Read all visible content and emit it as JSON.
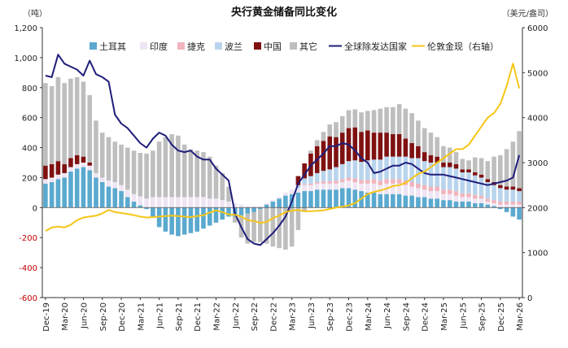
{
  "chart_data": {
    "type": "bar",
    "title": "央行黄金储备同比变化",
    "ylabel": "吨",
    "y2label": "美元/盎司",
    "ylim": [
      -600,
      1200
    ],
    "y2lim": [
      0,
      6000
    ],
    "yticks": [
      "1,200",
      "1,000",
      "800",
      "600",
      "400",
      "200",
      "0",
      "-200",
      "-400",
      "-600"
    ],
    "y2ticks": [
      "6000",
      "5000",
      "4000",
      "3000",
      "2000",
      "1000",
      "0"
    ],
    "xticks": [
      "Dec-19",
      "Mar-20",
      "Jun-20",
      "Sep-20",
      "Dec-20",
      "Mar-21",
      "Jun-21",
      "Sep-21",
      "Dec-21",
      "Mar-22",
      "Jun-22",
      "Sep-22",
      "Dec-22",
      "Mar-23",
      "Jun-23",
      "Sep-23",
      "Dec-23",
      "Mar-24",
      "Jun-24",
      "Sep-24",
      "Dec-24",
      "Mar-25",
      "Jun-25",
      "Sep-25",
      "Dec-25",
      "Mar-26"
    ],
    "grid": false,
    "legend_position": "top",
    "series": [
      {
        "name": "土耳其",
        "kind": "bar",
        "color": "#5aa9cf",
        "values": [
          160,
          170,
          190,
          200,
          240,
          260,
          270,
          250,
          200,
          170,
          140,
          130,
          110,
          70,
          40,
          15,
          -10,
          -60,
          -130,
          -160,
          -180,
          -190,
          -180,
          -170,
          -160,
          -140,
          -120,
          -100,
          -80,
          -60,
          -60,
          -50,
          -40,
          -30,
          -10,
          20,
          40,
          60,
          80,
          90,
          100,
          110,
          110,
          120,
          120,
          120,
          120,
          130,
          130,
          120,
          110,
          100,
          100,
          90,
          90,
          90,
          90,
          80,
          80,
          70,
          70,
          60,
          60,
          50,
          50,
          40,
          40,
          40,
          30,
          30,
          20,
          10,
          -10,
          -30,
          -60,
          -80
        ]
      },
      {
        "name": "印度",
        "kind": "bar",
        "color": "#eee4f3",
        "values": [
          30,
          30,
          30,
          30,
          30,
          30,
          30,
          30,
          30,
          30,
          40,
          40,
          40,
          50,
          50,
          60,
          60,
          70,
          70,
          70,
          70,
          70,
          70,
          70,
          70,
          70,
          60,
          60,
          50,
          40,
          30,
          20,
          10,
          10,
          10,
          10,
          10,
          10,
          20,
          30,
          30,
          40,
          40,
          40,
          40,
          40,
          40,
          40,
          50,
          50,
          50,
          60,
          60,
          60,
          70,
          70,
          70,
          70,
          60,
          60,
          50,
          50,
          50,
          40,
          40,
          40,
          30,
          30,
          30,
          30,
          20,
          20,
          20,
          20,
          20,
          20
        ]
      },
      {
        "name": "捷克",
        "kind": "bar",
        "color": "#f0b4bd",
        "values": [
          0,
          0,
          0,
          0,
          0,
          0,
          0,
          0,
          0,
          0,
          0,
          0,
          0,
          0,
          0,
          0,
          0,
          0,
          0,
          0,
          0,
          0,
          0,
          0,
          0,
          0,
          0,
          0,
          0,
          0,
          0,
          0,
          0,
          0,
          0,
          0,
          0,
          0,
          0,
          0,
          0,
          5,
          10,
          10,
          15,
          15,
          20,
          20,
          20,
          25,
          25,
          25,
          30,
          30,
          30,
          30,
          30,
          30,
          30,
          30,
          30,
          30,
          30,
          30,
          30,
          30,
          25,
          25,
          25,
          20,
          20,
          20,
          20,
          20,
          20,
          20
        ]
      },
      {
        "name": "波兰",
        "kind": "bar",
        "color": "#b9d4ed",
        "values": [
          0,
          0,
          0,
          0,
          0,
          0,
          0,
          0,
          0,
          0,
          0,
          0,
          0,
          0,
          0,
          0,
          0,
          0,
          0,
          0,
          0,
          0,
          0,
          0,
          0,
          0,
          0,
          0,
          0,
          0,
          0,
          0,
          0,
          0,
          0,
          0,
          0,
          0,
          0,
          0,
          20,
          40,
          50,
          60,
          70,
          80,
          90,
          100,
          110,
          120,
          120,
          130,
          130,
          140,
          150,
          150,
          150,
          160,
          160,
          170,
          160,
          160,
          160,
          150,
          150,
          150,
          140,
          140,
          130,
          120,
          110,
          100,
          90,
          80,
          80,
          70
        ]
      },
      {
        "name": "中国",
        "kind": "bar",
        "color": "#7f1111",
        "values": [
          90,
          90,
          90,
          60,
          60,
          60,
          40,
          20,
          0,
          0,
          0,
          0,
          0,
          0,
          0,
          0,
          0,
          0,
          0,
          0,
          0,
          0,
          0,
          0,
          0,
          0,
          0,
          0,
          0,
          0,
          0,
          0,
          0,
          0,
          0,
          0,
          0,
          0,
          0,
          0,
          60,
          100,
          150,
          180,
          200,
          220,
          200,
          210,
          220,
          220,
          200,
          200,
          180,
          180,
          160,
          150,
          150,
          120,
          100,
          80,
          60,
          50,
          40,
          30,
          30,
          30,
          20,
          20,
          20,
          20,
          20,
          20,
          20,
          20,
          20,
          20
        ]
      },
      {
        "name": "其它",
        "kind": "bar",
        "color": "#bebebe",
        "values": [
          550,
          520,
          560,
          540,
          530,
          520,
          500,
          450,
          350,
          300,
          290,
          270,
          270,
          280,
          290,
          290,
          300,
          310,
          370,
          400,
          420,
          410,
          350,
          320,
          310,
          300,
          280,
          220,
          180,
          100,
          -40,
          -150,
          -200,
          -200,
          -220,
          -240,
          -260,
          -270,
          -280,
          -260,
          -150,
          -30,
          20,
          40,
          60,
          80,
          100,
          110,
          120,
          120,
          130,
          130,
          150,
          160,
          170,
          180,
          200,
          200,
          200,
          170,
          160,
          150,
          130,
          110,
          100,
          80,
          70,
          60,
          100,
          110,
          120,
          170,
          200,
          250,
          300,
          380
        ]
      },
      {
        "name": "全球除发达国家",
        "kind": "line",
        "axis": "left",
        "color": "#1f1e7a",
        "values": [
          880,
          870,
          1020,
          960,
          940,
          920,
          880,
          980,
          890,
          870,
          840,
          620,
          560,
          530,
          480,
          430,
          400,
          460,
          500,
          480,
          420,
          380,
          370,
          380,
          340,
          320,
          320,
          260,
          220,
          180,
          -40,
          -130,
          -210,
          -240,
          -250,
          -210,
          -170,
          -120,
          -60,
          40,
          160,
          220,
          280,
          320,
          360,
          410,
          410,
          430,
          420,
          380,
          330,
          300,
          230,
          240,
          260,
          280,
          280,
          300,
          290,
          260,
          230,
          220,
          220,
          220,
          210,
          200,
          190,
          180,
          170,
          160,
          150,
          160,
          170,
          180,
          200,
          350
        ]
      },
      {
        "name": "伦敦金现（右轴）",
        "kind": "line",
        "axis": "right",
        "color": "#f5c518",
        "values": [
          1480,
          1560,
          1580,
          1560,
          1620,
          1720,
          1780,
          1800,
          1820,
          1870,
          1950,
          1900,
          1880,
          1860,
          1830,
          1800,
          1780,
          1790,
          1800,
          1810,
          1820,
          1810,
          1800,
          1790,
          1810,
          1830,
          1890,
          1940,
          1900,
          1850,
          1840,
          1800,
          1720,
          1700,
          1660,
          1680,
          1770,
          1820,
          1900,
          1930,
          1950,
          1920,
          1920,
          1930,
          1940,
          1970,
          2000,
          2020,
          2050,
          2100,
          2200,
          2300,
          2350,
          2380,
          2420,
          2480,
          2500,
          2550,
          2650,
          2750,
          2800,
          2900,
          3000,
          3100,
          3200,
          3300,
          3300,
          3400,
          3600,
          3800,
          4000,
          4100,
          4300,
          4700,
          5200,
          4650
        ]
      }
    ]
  }
}
